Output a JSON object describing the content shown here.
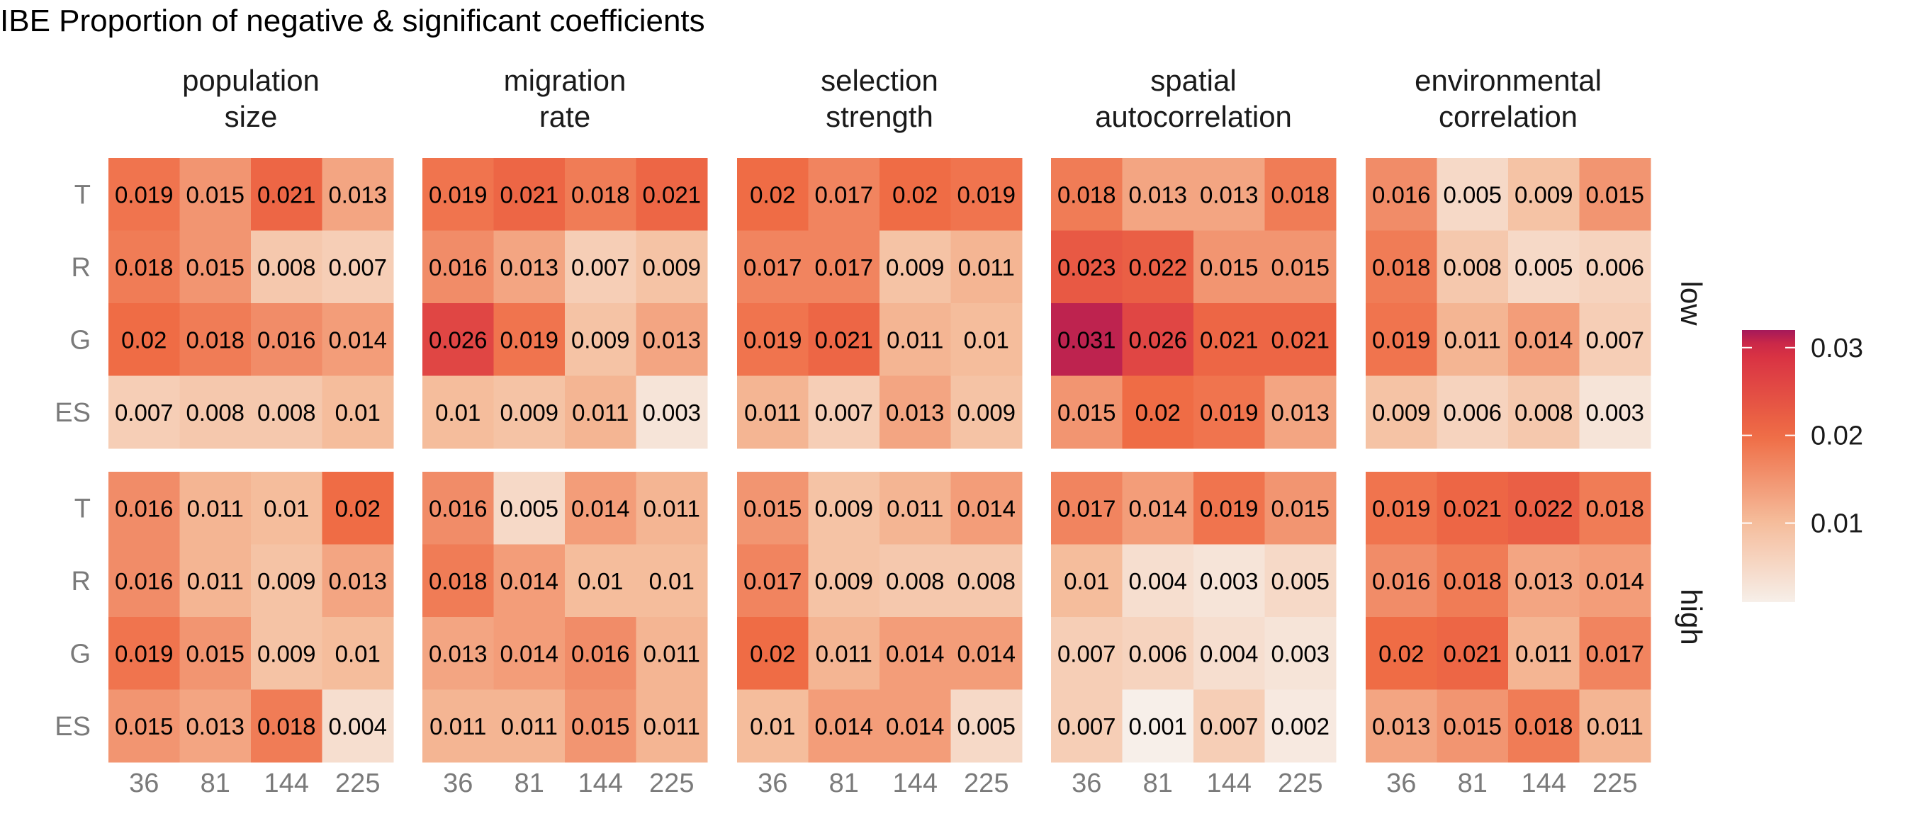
{
  "chart_data": {
    "type": "heatmap",
    "title": "IBE Proportion of negative & significant coefficients",
    "facet_columns": [
      {
        "id": "population-size",
        "label_lines": [
          "population",
          "size"
        ]
      },
      {
        "id": "migration-rate",
        "label_lines": [
          "migration",
          "rate"
        ]
      },
      {
        "id": "selection-strength",
        "label_lines": [
          "selection",
          "strength"
        ]
      },
      {
        "id": "spatial-autocorrelation",
        "label_lines": [
          "spatial",
          "autocorrelation"
        ]
      },
      {
        "id": "environmental-correlation",
        "label_lines": [
          "environmental",
          "correlation"
        ]
      }
    ],
    "facet_rows": [
      "low",
      "high"
    ],
    "x_categories": [
      "36",
      "81",
      "144",
      "225"
    ],
    "y_categories": [
      "T",
      "R",
      "G",
      "ES"
    ],
    "values": {
      "low": [
        [
          [
            "0.019",
            "0.015",
            "0.021",
            "0.013"
          ],
          [
            "0.018",
            "0.015",
            "0.008",
            "0.007"
          ],
          [
            "0.02",
            "0.018",
            "0.016",
            "0.014"
          ],
          [
            "0.007",
            "0.008",
            "0.008",
            "0.01"
          ]
        ],
        [
          [
            "0.019",
            "0.021",
            "0.018",
            "0.021"
          ],
          [
            "0.016",
            "0.013",
            "0.007",
            "0.009"
          ],
          [
            "0.026",
            "0.019",
            "0.009",
            "0.013"
          ],
          [
            "0.01",
            "0.009",
            "0.011",
            "0.003"
          ]
        ],
        [
          [
            "0.02",
            "0.017",
            "0.02",
            "0.019"
          ],
          [
            "0.017",
            "0.017",
            "0.009",
            "0.011"
          ],
          [
            "0.019",
            "0.021",
            "0.011",
            "0.01"
          ],
          [
            "0.011",
            "0.007",
            "0.013",
            "0.009"
          ]
        ],
        [
          [
            "0.018",
            "0.013",
            "0.013",
            "0.018"
          ],
          [
            "0.023",
            "0.022",
            "0.015",
            "0.015"
          ],
          [
            "0.031",
            "0.026",
            "0.021",
            "0.021"
          ],
          [
            "0.015",
            "0.02",
            "0.019",
            "0.013"
          ]
        ],
        [
          [
            "0.016",
            "0.005",
            "0.009",
            "0.015"
          ],
          [
            "0.018",
            "0.008",
            "0.005",
            "0.006"
          ],
          [
            "0.019",
            "0.011",
            "0.014",
            "0.007"
          ],
          [
            "0.009",
            "0.006",
            "0.008",
            "0.003"
          ]
        ]
      ],
      "high": [
        [
          [
            "0.016",
            "0.011",
            "0.01",
            "0.02"
          ],
          [
            "0.016",
            "0.011",
            "0.009",
            "0.013"
          ],
          [
            "0.019",
            "0.015",
            "0.009",
            "0.01"
          ],
          [
            "0.015",
            "0.013",
            "0.018",
            "0.004"
          ]
        ],
        [
          [
            "0.016",
            "0.005",
            "0.014",
            "0.011"
          ],
          [
            "0.018",
            "0.014",
            "0.01",
            "0.01"
          ],
          [
            "0.013",
            "0.014",
            "0.016",
            "0.011"
          ],
          [
            "0.011",
            "0.011",
            "0.015",
            "0.011"
          ]
        ],
        [
          [
            "0.015",
            "0.009",
            "0.011",
            "0.014"
          ],
          [
            "0.017",
            "0.009",
            "0.008",
            "0.008"
          ],
          [
            "0.02",
            "0.011",
            "0.014",
            "0.014"
          ],
          [
            "0.01",
            "0.014",
            "0.014",
            "0.005"
          ]
        ],
        [
          [
            "0.017",
            "0.014",
            "0.019",
            "0.015"
          ],
          [
            "0.01",
            "0.004",
            "0.003",
            "0.005"
          ],
          [
            "0.007",
            "0.006",
            "0.004",
            "0.003"
          ],
          [
            "0.007",
            "0.001",
            "0.007",
            "0.002"
          ]
        ],
        [
          [
            "0.019",
            "0.021",
            "0.022",
            "0.018"
          ],
          [
            "0.016",
            "0.018",
            "0.013",
            "0.014"
          ],
          [
            "0.02",
            "0.021",
            "0.011",
            "0.017"
          ],
          [
            "0.013",
            "0.015",
            "0.018",
            "0.011"
          ]
        ]
      ]
    },
    "color_scale": {
      "domain": [
        0,
        0.01,
        0.02,
        0.03,
        0.032
      ],
      "colors": [
        "#f7f4f1",
        "#f5bd9c",
        "#ef6c45",
        "#d62c43",
        "#a5195a"
      ]
    },
    "legend": {
      "ticks": [
        "0.03",
        "0.02",
        "0.01"
      ],
      "min": 0.001,
      "max": 0.032,
      "placement": "right"
    },
    "grid": false
  }
}
